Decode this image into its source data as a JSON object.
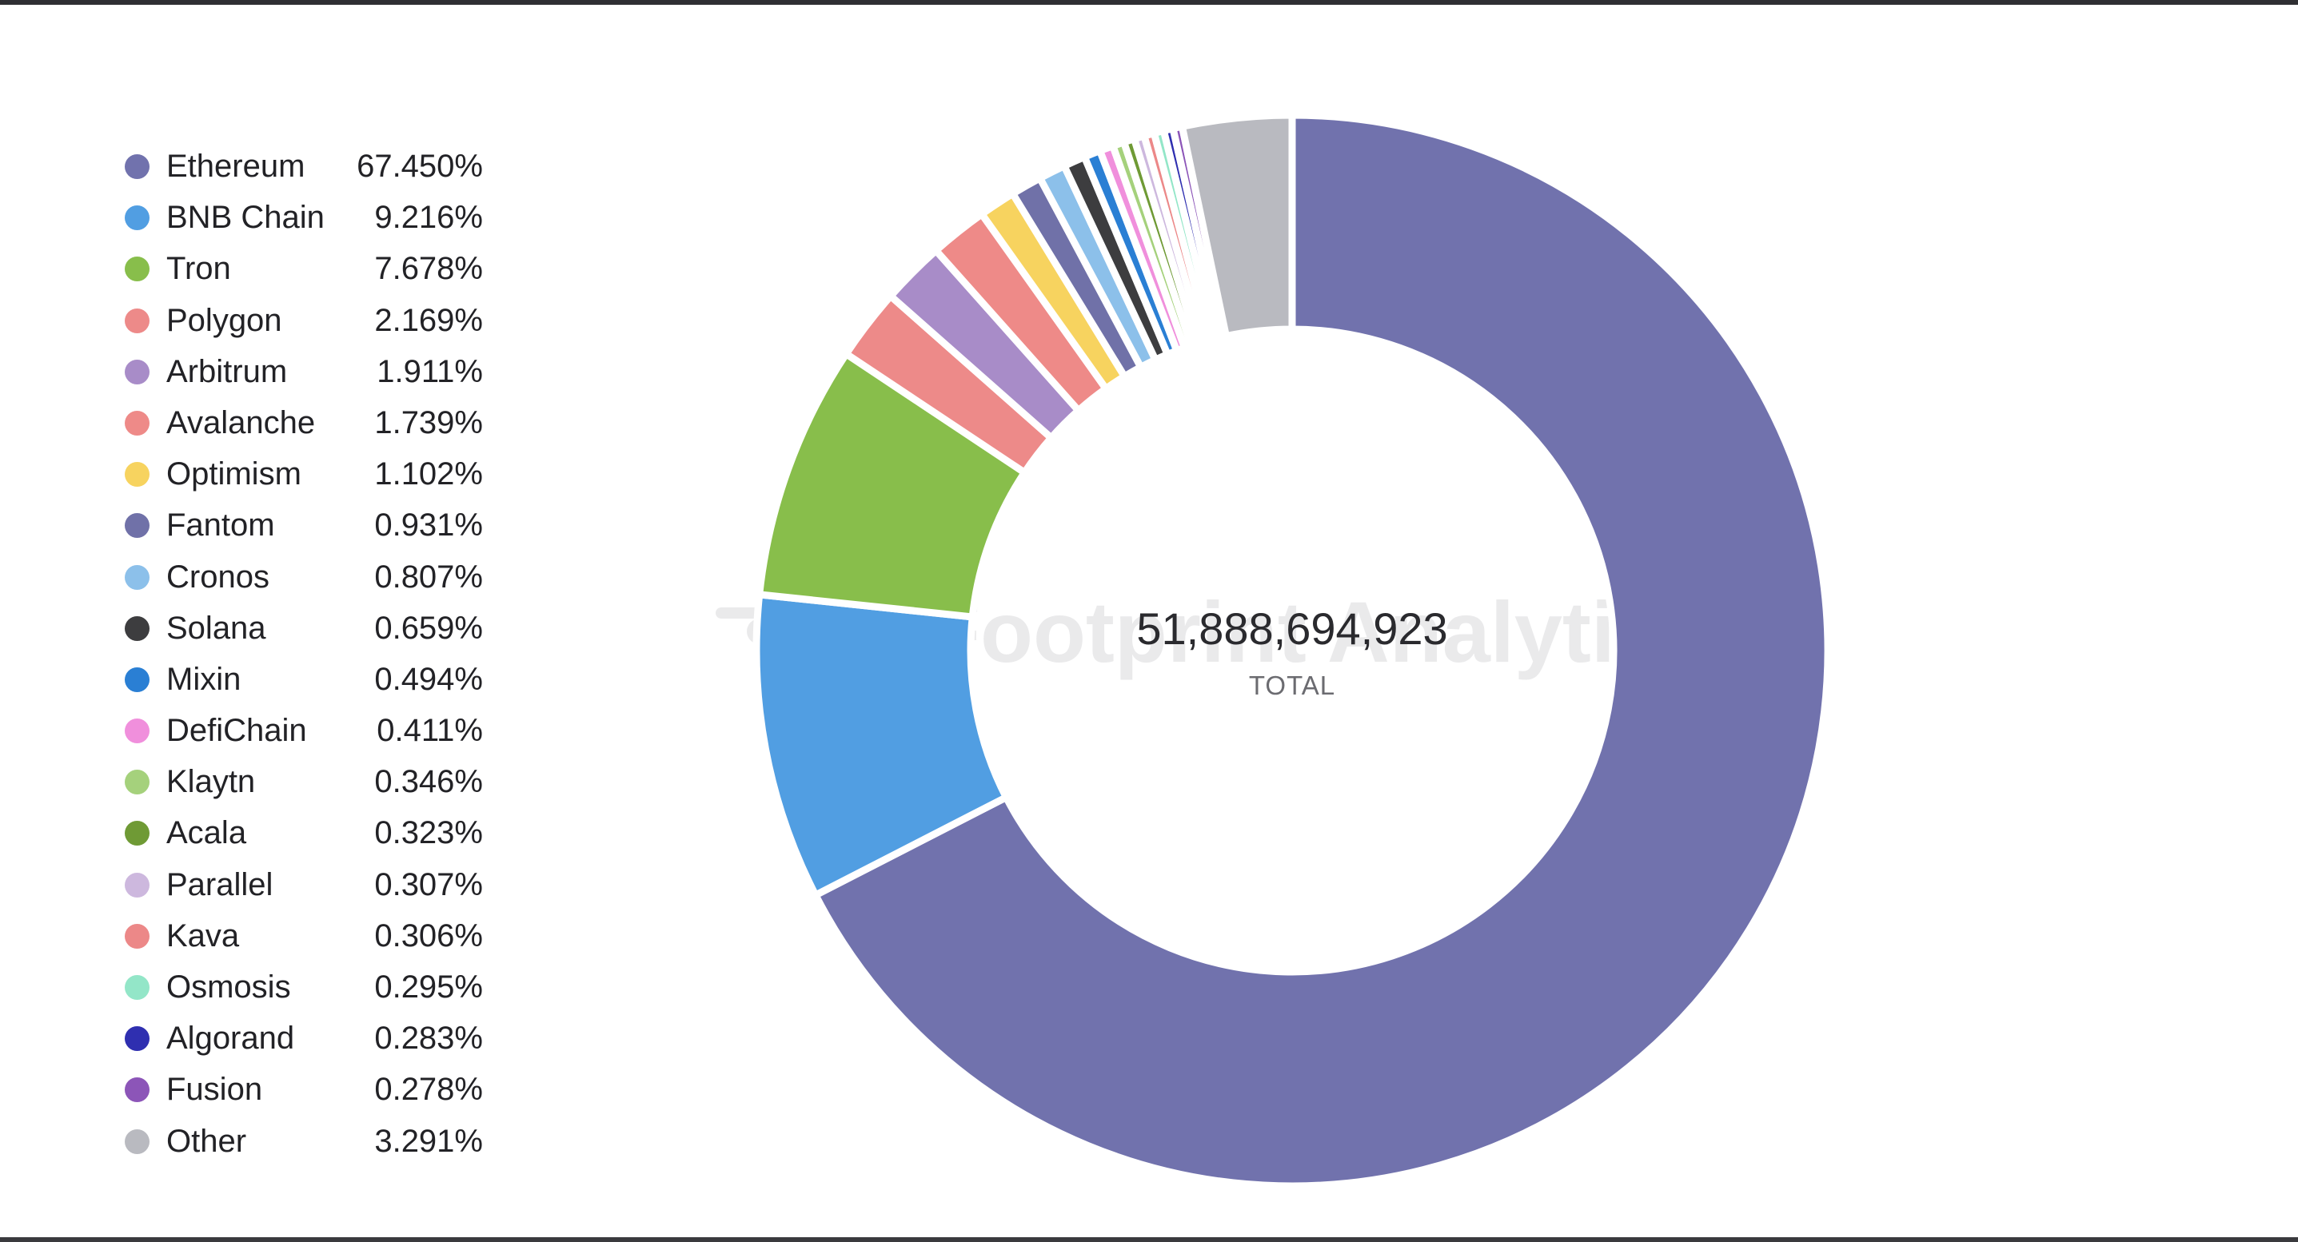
{
  "chart_data": {
    "type": "pie",
    "variant": "donut",
    "title": "",
    "center_value": "51,888,694,923",
    "center_label": "TOTAL",
    "watermark": "Footprint Analytics",
    "legend_position": "left",
    "slices": [
      {
        "label": "Ethereum",
        "value": 67.45,
        "display": "67.450%",
        "color": "#7172ad"
      },
      {
        "label": "BNB Chain",
        "value": 9.216,
        "display": "9.216%",
        "color": "#519ee2"
      },
      {
        "label": "Tron",
        "value": 7.678,
        "display": "7.678%",
        "color": "#88be4b"
      },
      {
        "label": "Polygon",
        "value": 2.169,
        "display": "2.169%",
        "color": "#ed8a89"
      },
      {
        "label": "Arbitrum",
        "value": 1.911,
        "display": "1.911%",
        "color": "#a88cc8"
      },
      {
        "label": "Avalanche",
        "value": 1.739,
        "display": "1.739%",
        "color": "#ee8a88"
      },
      {
        "label": "Optimism",
        "value": 1.102,
        "display": "1.102%",
        "color": "#f7d35f"
      },
      {
        "label": "Fantom",
        "value": 0.931,
        "display": "0.931%",
        "color": "#7071a8"
      },
      {
        "label": "Cronos",
        "value": 0.807,
        "display": "0.807%",
        "color": "#8cc0ea"
      },
      {
        "label": "Solana",
        "value": 0.659,
        "display": "0.659%",
        "color": "#3d3d3f"
      },
      {
        "label": "Mixin",
        "value": 0.494,
        "display": "0.494%",
        "color": "#2a7fd4"
      },
      {
        "label": "DefiChain",
        "value": 0.411,
        "display": "0.411%",
        "color": "#f08fdc"
      },
      {
        "label": "Klaytn",
        "value": 0.346,
        "display": "0.346%",
        "color": "#a5d17c"
      },
      {
        "label": "Acala",
        "value": 0.323,
        "display": "0.323%",
        "color": "#6f9a35"
      },
      {
        "label": "Parallel",
        "value": 0.307,
        "display": "0.307%",
        "color": "#cdb8de"
      },
      {
        "label": "Kava",
        "value": 0.306,
        "display": "0.306%",
        "color": "#ec8888"
      },
      {
        "label": "Osmosis",
        "value": 0.295,
        "display": "0.295%",
        "color": "#93e6c8"
      },
      {
        "label": "Algorand",
        "value": 0.283,
        "display": "0.283%",
        "color": "#2f2fb0"
      },
      {
        "label": "Fusion",
        "value": 0.278,
        "display": "0.278%",
        "color": "#8c55b8"
      },
      {
        "label": "Other",
        "value": 3.291,
        "display": "3.291%",
        "color": "#b9bac0"
      }
    ]
  }
}
